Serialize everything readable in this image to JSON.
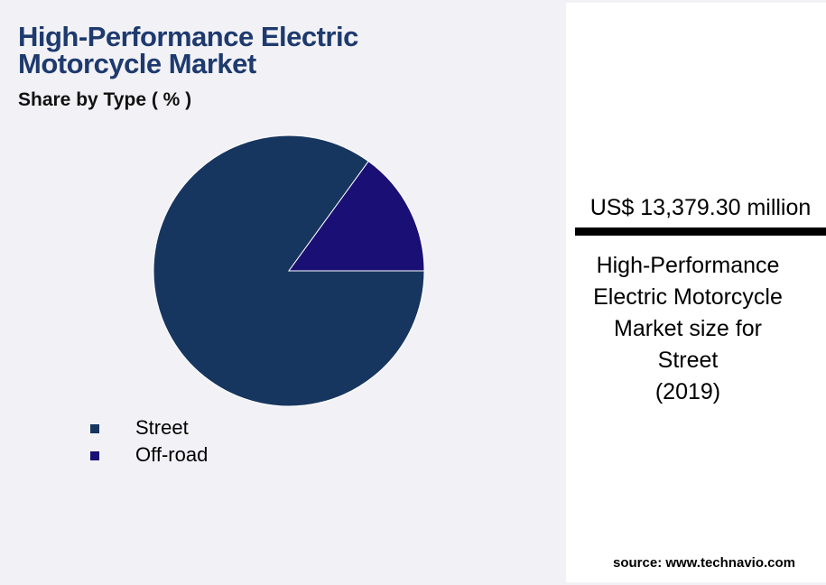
{
  "chart_data": {
    "type": "pie",
    "title": "High-Performance Electric Motorcycle Market",
    "subtitle": "Share by Type ( % )",
    "categories": [
      "Street",
      "Off-road"
    ],
    "values": [
      85,
      15
    ],
    "colors": [
      "#17365f",
      "#1a0f74"
    ]
  },
  "panel": {
    "value": "US$ 13,379.30 million",
    "label_lines": [
      "High-Performance",
      "Electric Motorcycle",
      "Market size for",
      "Street",
      "(2019)"
    ]
  },
  "source": "source: www.technavio.com"
}
